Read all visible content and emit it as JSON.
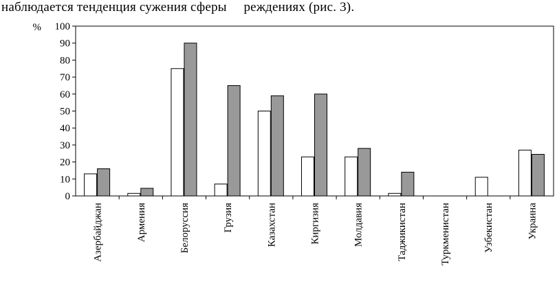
{
  "header": {
    "text": "наблюдается тенденция сужения сферы     реждениях (рис. 3)."
  },
  "chart_data": {
    "type": "bar",
    "ylabel": "%",
    "ylim": [
      0,
      100
    ],
    "yticks": [
      0,
      10,
      20,
      30,
      40,
      50,
      60,
      70,
      80,
      90,
      100
    ],
    "grid": false,
    "categories": [
      "Азербайджан",
      "Армения",
      "Белоруссия",
      "Грузия",
      "Казахстан",
      "Киргизия",
      "Молдавия",
      "Таджикистан",
      "Туркменистан",
      "Узбекистан",
      "Украина"
    ],
    "series": [
      {
        "color": "#ffffff",
        "values": [
          13,
          1.5,
          75,
          7,
          50,
          23,
          23,
          1.5,
          0,
          11,
          27
        ]
      },
      {
        "color": "#999999",
        "values": [
          16,
          4.5,
          90,
          65,
          59,
          60,
          28,
          14,
          0,
          0,
          24.5
        ]
      }
    ]
  }
}
